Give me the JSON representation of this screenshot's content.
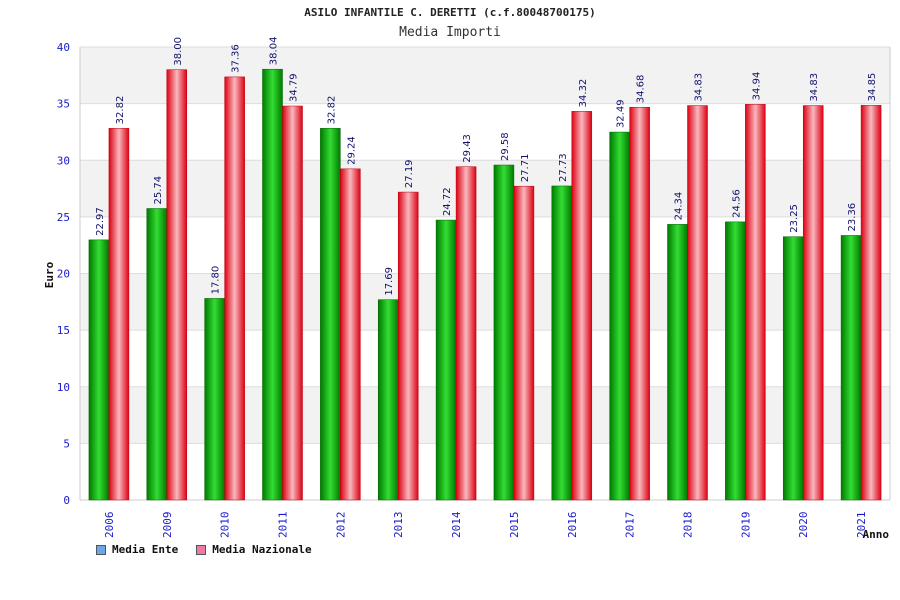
{
  "chart_data": {
    "type": "bar",
    "title": "ASILO INFANTILE C. DERETTI (c.f.80048700175)",
    "subtitle": "Media Importi",
    "ylabel": "Euro",
    "xlabel": "Anno",
    "ylim": [
      0,
      40
    ],
    "yticks": [
      "0",
      "5",
      "10",
      "15",
      "20",
      "25",
      "30",
      "35",
      "40"
    ],
    "categories": [
      "2006",
      "2009",
      "2010",
      "2011",
      "2012",
      "2013",
      "2014",
      "2015",
      "2016",
      "2017",
      "2018",
      "2019",
      "2020",
      "2021"
    ],
    "series": [
      {
        "name": "Media Ente",
        "values": [
          22.97,
          25.74,
          17.8,
          38.04,
          32.82,
          17.69,
          24.72,
          29.58,
          27.73,
          32.49,
          24.34,
          24.56,
          23.25,
          23.36
        ],
        "labels": [
          "22.97",
          "25.74",
          "17.80",
          "38.04",
          "32.82",
          "17.69",
          "24.72",
          "29.58",
          "27.73",
          "32.49",
          "24.34",
          "24.56",
          "23.25",
          "23.36"
        ]
      },
      {
        "name": "Media Nazionale",
        "values": [
          32.82,
          38.0,
          37.36,
          34.79,
          29.24,
          27.19,
          29.43,
          27.71,
          34.32,
          34.68,
          34.83,
          34.94,
          34.83,
          34.85
        ],
        "labels": [
          "32.82",
          "38.00",
          "37.36",
          "34.79",
          "29.24",
          "27.19",
          "29.43",
          "27.71",
          "34.32",
          "34.68",
          "34.83",
          "34.94",
          "34.83",
          "34.85"
        ]
      }
    ],
    "grid": true,
    "legend_position": "bottom-left",
    "colors": {
      "ente": "#00aa00",
      "nazionale": "#ee2233",
      "legend_ente": "#6aa6e8",
      "legend_nazionale": "#e87aa6",
      "axis_text": "#1a1acc",
      "band": "#f2f2f2"
    }
  }
}
